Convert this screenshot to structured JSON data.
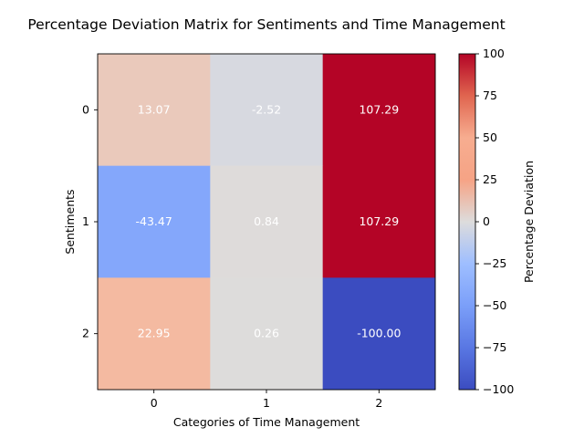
{
  "chart_data": {
    "type": "heatmap",
    "title": "Percentage Deviation Matrix for Sentiments and Time Management",
    "xlabel": "Categories of Time Management",
    "ylabel": "Sentiments",
    "x_categories": [
      "0",
      "1",
      "2"
    ],
    "y_categories": [
      "0",
      "1",
      "2"
    ],
    "values": [
      [
        13.07,
        -2.52,
        107.29
      ],
      [
        -43.47,
        0.84,
        107.29
      ],
      [
        22.95,
        0.26,
        -100.0
      ]
    ],
    "cell_labels": [
      [
        "13.07",
        "-2.52",
        "107.29"
      ],
      [
        "-43.47",
        "0.84",
        "107.29"
      ],
      [
        "22.95",
        "0.26",
        "-100.00"
      ]
    ],
    "colormap": "coolwarm",
    "color_range": [
      -100,
      100
    ],
    "colorbar": {
      "label": "Percentage Deviation",
      "ticks": [
        100,
        75,
        50,
        25,
        0,
        -25,
        -50,
        -75,
        -100
      ],
      "tick_labels": [
        "100",
        "75",
        "50",
        "25",
        "0",
        "−25",
        "−50",
        "−75",
        "−100"
      ]
    },
    "grid": false
  }
}
